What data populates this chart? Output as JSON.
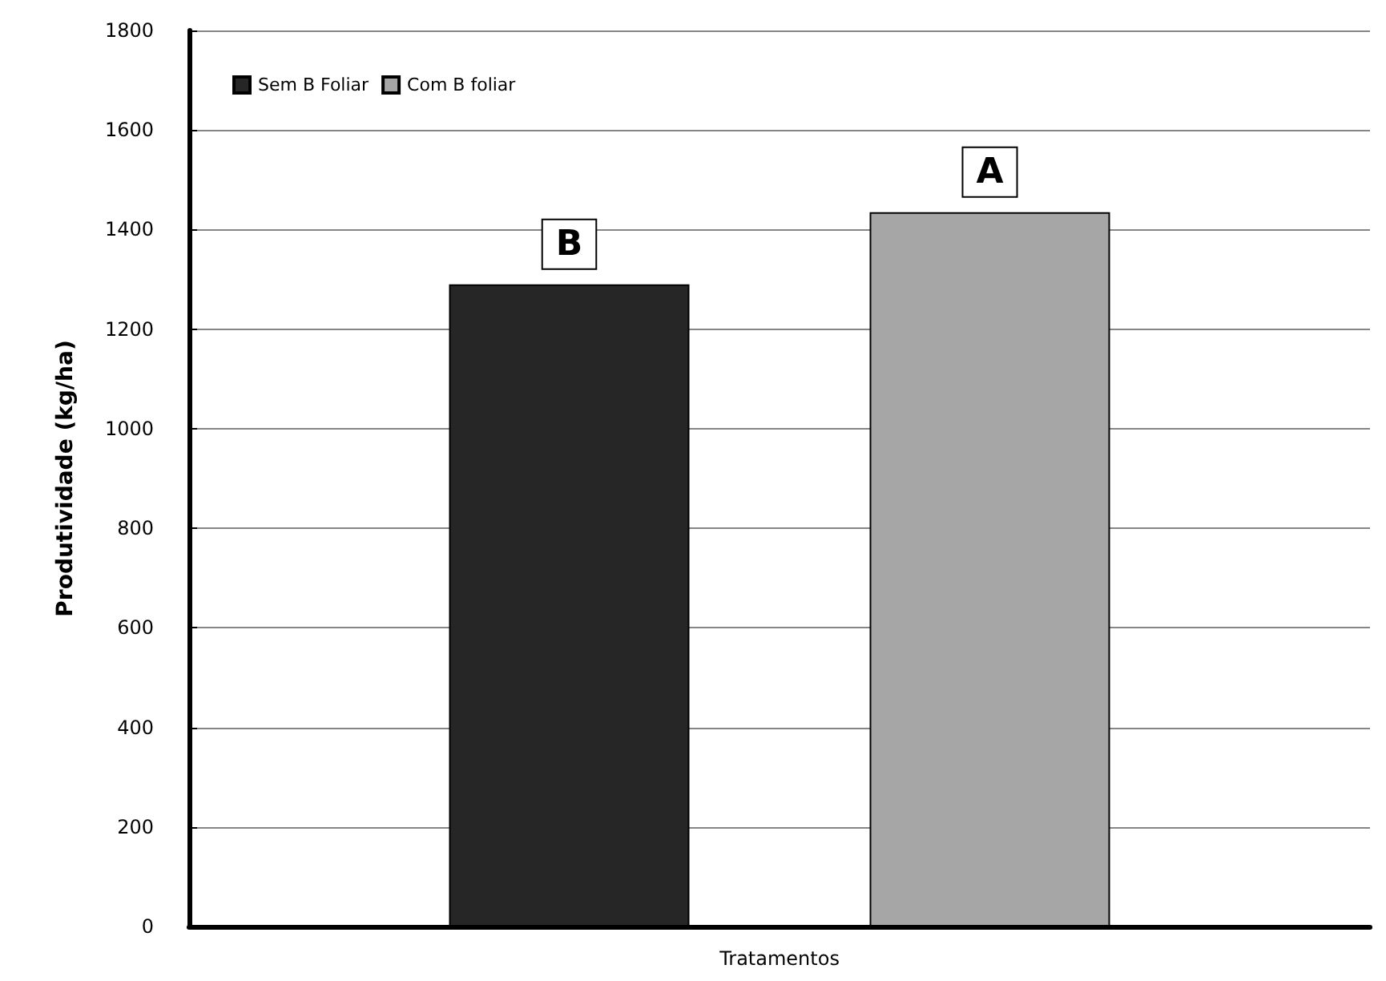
{
  "chart_data": {
    "type": "bar",
    "xlabel": "Tratamentos",
    "ylabel": "Produtividade (kg/ha)",
    "categories": [
      null
    ],
    "series": [
      {
        "name": "Sem B Foliar",
        "color": "#262626",
        "values": [
          1290
        ]
      },
      {
        "name": "Com B foliar",
        "color": "#a6a6a6",
        "values": [
          1435
        ]
      }
    ],
    "annotations": [
      "B",
      "A"
    ],
    "ylim": [
      0,
      1800
    ],
    "yticks": [
      0,
      200,
      400,
      600,
      800,
      1000,
      1200,
      1400,
      1600,
      1800
    ],
    "grid": "y",
    "legend": "top left"
  }
}
